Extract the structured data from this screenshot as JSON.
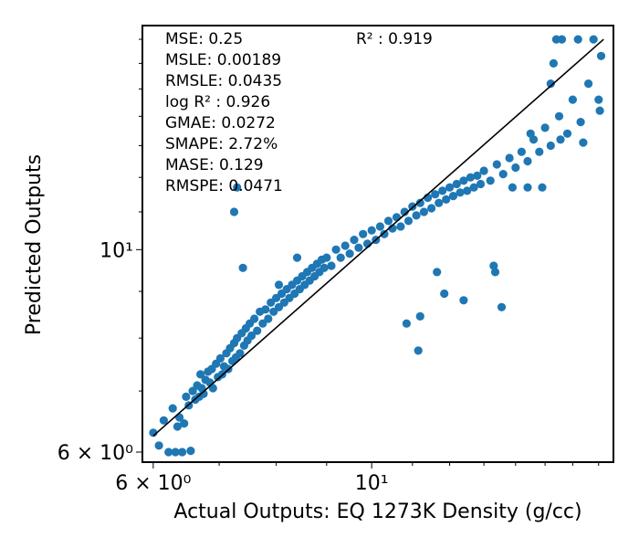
{
  "chart_data": {
    "type": "scatter",
    "title": "",
    "xlabel": "Actual Outputs: EQ 1273K Density (g/cc)",
    "ylabel": "Predicted Outputs",
    "xscale": "log",
    "yscale": "log",
    "xlim": [
      5.85,
      17.6
    ],
    "ylim": [
      5.85,
      17.6
    ],
    "x_ticks": [
      {
        "value": 6,
        "label": "6 × 10⁰"
      },
      {
        "value": 10,
        "label": "10¹"
      }
    ],
    "y_ticks": [
      {
        "value": 6,
        "label": "6 × 10⁰"
      },
      {
        "value": 10,
        "label": "10¹"
      }
    ],
    "grid": false,
    "marker_color": "#1f77b4",
    "fit_line": {
      "x": [
        6.0,
        17.2
      ],
      "y": [
        6.25,
        17.0
      ],
      "color": "#000000"
    },
    "metrics": {
      "left": [
        "MSE: 0.25",
        "MSLE: 0.00189",
        "RMSLE: 0.0435",
        "log R² : 0.926",
        "GMAE: 0.0272",
        "SMAPE: 2.72%",
        "MASE: 0.129",
        "RMSPE: 0.0471"
      ],
      "right": "R² : 0.919"
    },
    "points": [
      [
        6.0,
        6.3
      ],
      [
        6.08,
        6.1
      ],
      [
        6.15,
        6.5
      ],
      [
        6.22,
        6.0
      ],
      [
        6.28,
        6.7
      ],
      [
        6.32,
        6.0
      ],
      [
        6.35,
        6.4
      ],
      [
        6.38,
        6.55
      ],
      [
        6.42,
        6.0
      ],
      [
        6.45,
        6.45
      ],
      [
        6.48,
        6.9
      ],
      [
        6.52,
        6.75
      ],
      [
        6.55,
        6.02
      ],
      [
        6.58,
        7.0
      ],
      [
        6.62,
        6.85
      ],
      [
        6.65,
        7.1
      ],
      [
        6.68,
        6.9
      ],
      [
        6.7,
        7.3
      ],
      [
        6.72,
        7.05
      ],
      [
        6.75,
        6.95
      ],
      [
        6.78,
        7.2
      ],
      [
        6.82,
        7.35
      ],
      [
        6.85,
        7.15
      ],
      [
        6.88,
        7.4
      ],
      [
        6.9,
        7.05
      ],
      [
        6.95,
        7.5
      ],
      [
        6.98,
        7.25
      ],
      [
        7.02,
        7.6
      ],
      [
        7.05,
        7.3
      ],
      [
        7.08,
        7.45
      ],
      [
        7.12,
        7.7
      ],
      [
        7.15,
        7.4
      ],
      [
        7.18,
        7.8
      ],
      [
        7.22,
        7.55
      ],
      [
        7.25,
        7.9
      ],
      [
        7.28,
        7.62
      ],
      [
        7.3,
        8.0
      ],
      [
        7.35,
        7.7
      ],
      [
        7.38,
        8.1
      ],
      [
        7.42,
        7.85
      ],
      [
        7.45,
        8.2
      ],
      [
        7.48,
        7.95
      ],
      [
        7.52,
        8.3
      ],
      [
        7.55,
        8.05
      ],
      [
        7.6,
        8.4
      ],
      [
        7.65,
        8.15
      ],
      [
        7.7,
        8.55
      ],
      [
        7.75,
        8.3
      ],
      [
        7.8,
        8.6
      ],
      [
        7.85,
        8.4
      ],
      [
        7.9,
        8.75
      ],
      [
        7.95,
        8.55
      ],
      [
        8.0,
        8.85
      ],
      [
        8.05,
        8.65
      ],
      [
        8.1,
        8.95
      ],
      [
        8.15,
        8.75
      ],
      [
        8.2,
        9.05
      ],
      [
        8.25,
        8.85
      ],
      [
        8.3,
        9.15
      ],
      [
        8.35,
        8.95
      ],
      [
        8.4,
        9.25
      ],
      [
        8.45,
        9.05
      ],
      [
        8.5,
        9.35
      ],
      [
        8.55,
        9.15
      ],
      [
        8.6,
        9.45
      ],
      [
        8.65,
        9.25
      ],
      [
        8.7,
        9.55
      ],
      [
        8.75,
        9.35
      ],
      [
        8.8,
        9.65
      ],
      [
        8.85,
        9.45
      ],
      [
        8.9,
        9.75
      ],
      [
        8.95,
        9.55
      ],
      [
        9.0,
        9.8
      ],
      [
        9.1,
        9.6
      ],
      [
        9.2,
        10.0
      ],
      [
        9.3,
        9.8
      ],
      [
        9.4,
        10.1
      ],
      [
        9.5,
        9.9
      ],
      [
        9.6,
        10.25
      ],
      [
        9.7,
        10.05
      ],
      [
        9.8,
        10.4
      ],
      [
        9.9,
        10.15
      ],
      [
        10.0,
        10.5
      ],
      [
        10.1,
        10.25
      ],
      [
        10.2,
        10.6
      ],
      [
        10.3,
        10.4
      ],
      [
        10.4,
        10.75
      ],
      [
        10.5,
        10.55
      ],
      [
        10.6,
        10.85
      ],
      [
        10.7,
        10.6
      ],
      [
        10.8,
        11.0
      ],
      [
        10.9,
        10.75
      ],
      [
        11.0,
        11.15
      ],
      [
        11.1,
        10.9
      ],
      [
        11.2,
        11.25
      ],
      [
        11.3,
        11.0
      ],
      [
        11.4,
        11.4
      ],
      [
        11.5,
        11.1
      ],
      [
        11.6,
        11.5
      ],
      [
        11.7,
        11.25
      ],
      [
        11.8,
        11.6
      ],
      [
        11.9,
        11.35
      ],
      [
        12.0,
        11.7
      ],
      [
        12.1,
        11.45
      ],
      [
        12.2,
        11.8
      ],
      [
        12.3,
        11.55
      ],
      [
        12.4,
        11.9
      ],
      [
        12.5,
        11.6
      ],
      [
        12.6,
        12.0
      ],
      [
        12.7,
        11.7
      ],
      [
        12.8,
        12.05
      ],
      [
        12.9,
        11.8
      ],
      [
        13.0,
        12.2
      ],
      [
        13.2,
        11.9
      ],
      [
        13.4,
        12.4
      ],
      [
        13.6,
        12.1
      ],
      [
        13.8,
        12.6
      ],
      [
        14.0,
        12.3
      ],
      [
        14.2,
        12.8
      ],
      [
        14.4,
        12.5
      ],
      [
        14.6,
        13.2
      ],
      [
        14.8,
        12.8
      ],
      [
        15.0,
        13.6
      ],
      [
        15.2,
        13.0
      ],
      [
        15.5,
        14.0
      ],
      [
        15.8,
        13.4
      ],
      [
        16.0,
        14.6
      ],
      [
        16.3,
        13.8
      ],
      [
        16.6,
        15.2
      ],
      [
        17.0,
        14.6
      ],
      [
        7.3,
        11.7
      ],
      [
        7.25,
        11.0
      ],
      [
        7.4,
        9.55
      ],
      [
        8.05,
        9.15
      ],
      [
        8.4,
        9.8
      ],
      [
        10.85,
        8.3
      ],
      [
        11.2,
        8.45
      ],
      [
        11.15,
        7.75
      ],
      [
        11.65,
        9.45
      ],
      [
        11.85,
        8.95
      ],
      [
        12.4,
        8.8
      ],
      [
        13.3,
        9.6
      ],
      [
        13.35,
        9.45
      ],
      [
        13.55,
        8.65
      ],
      [
        15.4,
        17.0
      ],
      [
        15.6,
        17.0
      ],
      [
        16.2,
        17.0
      ],
      [
        16.8,
        17.0
      ],
      [
        15.3,
        16.0
      ],
      [
        15.2,
        15.2
      ],
      [
        16.4,
        13.1
      ],
      [
        17.05,
        14.2
      ],
      [
        17.1,
        16.3
      ],
      [
        15.55,
        13.2
      ],
      [
        14.5,
        13.4
      ],
      [
        13.9,
        11.7
      ],
      [
        14.4,
        11.7
      ],
      [
        14.9,
        11.7
      ]
    ]
  }
}
